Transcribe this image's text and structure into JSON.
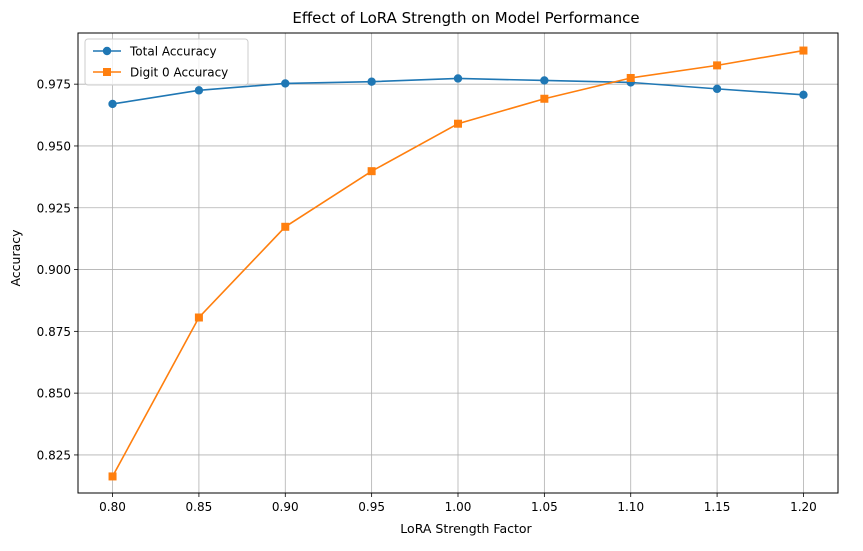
{
  "chart_data": {
    "type": "line",
    "title": "Effect of LoRA Strength on Model Performance",
    "xlabel": "LoRA Strength Factor",
    "ylabel": "Accuracy",
    "x": [
      0.8,
      0.85,
      0.9,
      0.95,
      1.0,
      1.05,
      1.1,
      1.15,
      1.2
    ],
    "x_tick_labels": [
      "0.80",
      "0.85",
      "0.90",
      "0.95",
      "1.00",
      "1.05",
      "1.10",
      "1.15",
      "1.20"
    ],
    "y_ticks": [
      0.825,
      0.85,
      0.875,
      0.9,
      0.925,
      0.95,
      0.975
    ],
    "y_tick_labels": [
      "0.825",
      "0.850",
      "0.875",
      "0.900",
      "0.925",
      "0.950",
      "0.975"
    ],
    "xlim": [
      0.78,
      1.22
    ],
    "ylim": [
      0.8096,
      0.9957
    ],
    "grid": true,
    "legend_position": "upper-left",
    "series": [
      {
        "name": "Total Accuracy",
        "color": "#1f77b4",
        "marker": "circle",
        "values": [
          0.967,
          0.9725,
          0.9753,
          0.976,
          0.9773,
          0.9765,
          0.9757,
          0.9731,
          0.9707
        ]
      },
      {
        "name": "Digit 0 Accuracy",
        "color": "#ff7f0e",
        "marker": "square",
        "values": [
          0.8163,
          0.8806,
          0.9173,
          0.9398,
          0.959,
          0.9691,
          0.9775,
          0.9826,
          0.9886
        ]
      }
    ]
  }
}
